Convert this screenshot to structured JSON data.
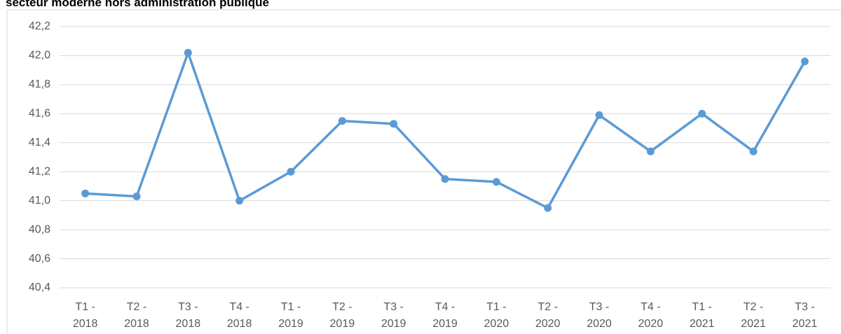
{
  "chart_data": {
    "type": "line",
    "title": "secteur moderne hors administration publique",
    "categories": [
      "T1 - 2018",
      "T2 - 2018",
      "T3 - 2018",
      "T4 - 2018",
      "T1 - 2019",
      "T2 - 2019",
      "T3 - 2019",
      "T4 - 2019",
      "T1 - 2020",
      "T2 - 2020",
      "T3 - 2020",
      "T4 - 2020",
      "T1 - 2021",
      "T2 - 2021",
      "T3 - 2021"
    ],
    "values": [
      41.05,
      41.03,
      42.02,
      41.0,
      41.2,
      41.55,
      41.53,
      41.15,
      41.13,
      40.95,
      41.59,
      41.34,
      41.6,
      41.34,
      41.96
    ],
    "color": "#5b9bd5",
    "ylim": [
      40.4,
      42.2
    ],
    "yticks": [
      {
        "value": 40.4,
        "label": "40,4"
      },
      {
        "value": 40.6,
        "label": "40,6"
      },
      {
        "value": 40.8,
        "label": "40,8"
      },
      {
        "value": 41.0,
        "label": "41,0"
      },
      {
        "value": 41.2,
        "label": "41,2"
      },
      {
        "value": 41.4,
        "label": "41,4"
      },
      {
        "value": 41.6,
        "label": "41,6"
      },
      {
        "value": 41.8,
        "label": "41,8"
      },
      {
        "value": 42.0,
        "label": "42,0"
      },
      {
        "value": 42.2,
        "label": "42,2"
      }
    ],
    "grid": true
  }
}
